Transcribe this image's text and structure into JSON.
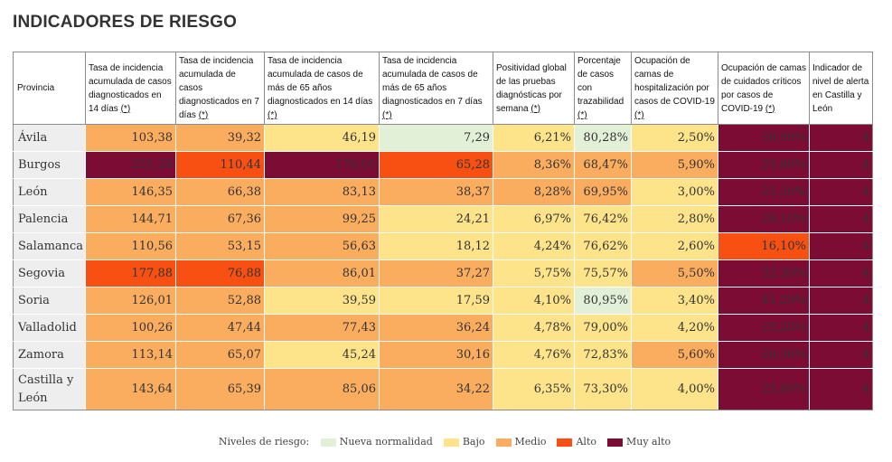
{
  "title": "INDICADORES DE RIESGO",
  "headers": [
    {
      "text": "Provincia",
      "star": ""
    },
    {
      "text": "Tasa de incidencia acumulada de casos diagnosticados en 14 días ",
      "star": "(*)"
    },
    {
      "text": "Tasa de incidencia acumulada de casos diagnosticados en 7 días ",
      "star": "(*)"
    },
    {
      "text": "Tasa de incidencia acumulada de casos de más de 65 años diagnosticados en 14 días ",
      "star": "(*)"
    },
    {
      "text": "Tasa de incidencia acumulada de casos de más de 65 años diagnosticados en 7 días ",
      "star": "(*)"
    },
    {
      "text": "Positividad global de las pruebas diagnósticas por semana ",
      "star": "(*)"
    },
    {
      "text": "Porcentaje de casos con trazabilidad ",
      "star": "(*)"
    },
    {
      "text": "Ocupación de camas de hospitalización por casos de COVID-19 ",
      "star": "(*)"
    },
    {
      "text": "Ocupación de camas de cuidados críticos por casos de COVID-19 ",
      "star": "(*)"
    },
    {
      "text": "Indicador de nivel de alerta en Castilla y León",
      "star": ""
    }
  ],
  "rows": [
    {
      "name": "Ávila",
      "cells": [
        {
          "v": "103,38",
          "lvl": "m"
        },
        {
          "v": "39,32",
          "lvl": "m"
        },
        {
          "v": "46,19",
          "lvl": "b"
        },
        {
          "v": "7,29",
          "lvl": "n"
        },
        {
          "v": "6,21%",
          "lvl": "b"
        },
        {
          "v": "80,28%",
          "lvl": "n"
        },
        {
          "v": "2,50%",
          "lvl": "b"
        },
        {
          "v": "38,90%",
          "lvl": "ma"
        },
        {
          "v": "4",
          "lvl": "ma"
        }
      ]
    },
    {
      "name": "Burgos",
      "cells": [
        {
          "v": "255,28",
          "lvl": "ma"
        },
        {
          "v": "110,44",
          "lvl": "a"
        },
        {
          "v": "176,01",
          "lvl": "ma"
        },
        {
          "v": "65,28",
          "lvl": "a"
        },
        {
          "v": "8,36%",
          "lvl": "m"
        },
        {
          "v": "68,47%",
          "lvl": "m"
        },
        {
          "v": "5,90%",
          "lvl": "m"
        },
        {
          "v": "25,80%",
          "lvl": "ma"
        },
        {
          "v": "4",
          "lvl": "ma"
        }
      ]
    },
    {
      "name": "León",
      "cells": [
        {
          "v": "146,35",
          "lvl": "m"
        },
        {
          "v": "66,38",
          "lvl": "m"
        },
        {
          "v": "83,13",
          "lvl": "m"
        },
        {
          "v": "38,37",
          "lvl": "m"
        },
        {
          "v": "8,28%",
          "lvl": "m"
        },
        {
          "v": "69,95%",
          "lvl": "m"
        },
        {
          "v": "3,00%",
          "lvl": "b"
        },
        {
          "v": "25,30%",
          "lvl": "ma"
        },
        {
          "v": "4",
          "lvl": "ma"
        }
      ]
    },
    {
      "name": "Palencia",
      "cells": [
        {
          "v": "144,71",
          "lvl": "m"
        },
        {
          "v": "67,36",
          "lvl": "m"
        },
        {
          "v": "99,25",
          "lvl": "m"
        },
        {
          "v": "24,21",
          "lvl": "b"
        },
        {
          "v": "6,97%",
          "lvl": "b"
        },
        {
          "v": "76,42%",
          "lvl": "b"
        },
        {
          "v": "2,80%",
          "lvl": "b"
        },
        {
          "v": "28,10%",
          "lvl": "ma"
        },
        {
          "v": "4",
          "lvl": "ma"
        }
      ]
    },
    {
      "name": "Salamanca",
      "cells": [
        {
          "v": "110,56",
          "lvl": "m"
        },
        {
          "v": "53,15",
          "lvl": "m"
        },
        {
          "v": "56,63",
          "lvl": "m"
        },
        {
          "v": "18,12",
          "lvl": "b"
        },
        {
          "v": "4,24%",
          "lvl": "b"
        },
        {
          "v": "76,62%",
          "lvl": "b"
        },
        {
          "v": "2,60%",
          "lvl": "b"
        },
        {
          "v": "16,10%",
          "lvl": "a"
        },
        {
          "v": "4",
          "lvl": "ma"
        }
      ]
    },
    {
      "name": "Segovia",
      "cells": [
        {
          "v": "177,88",
          "lvl": "a"
        },
        {
          "v": "76,88",
          "lvl": "a"
        },
        {
          "v": "86,01",
          "lvl": "m"
        },
        {
          "v": "37,27",
          "lvl": "m"
        },
        {
          "v": "5,75%",
          "lvl": "b"
        },
        {
          "v": "75,57%",
          "lvl": "b"
        },
        {
          "v": "5,50%",
          "lvl": "m"
        },
        {
          "v": "32,30%",
          "lvl": "ma"
        },
        {
          "v": "4",
          "lvl": "ma"
        }
      ]
    },
    {
      "name": "Soria",
      "cells": [
        {
          "v": "126,01",
          "lvl": "m"
        },
        {
          "v": "52,88",
          "lvl": "m"
        },
        {
          "v": "39,59",
          "lvl": "b"
        },
        {
          "v": "17,59",
          "lvl": "b"
        },
        {
          "v": "4,10%",
          "lvl": "b"
        },
        {
          "v": "80,95%",
          "lvl": "n"
        },
        {
          "v": "3,40%",
          "lvl": "b"
        },
        {
          "v": "41,20%",
          "lvl": "ma"
        },
        {
          "v": "4",
          "lvl": "ma"
        }
      ]
    },
    {
      "name": "Valladolid",
      "cells": [
        {
          "v": "100,26",
          "lvl": "m"
        },
        {
          "v": "47,44",
          "lvl": "m"
        },
        {
          "v": "77,43",
          "lvl": "m"
        },
        {
          "v": "36,24",
          "lvl": "m"
        },
        {
          "v": "4,78%",
          "lvl": "b"
        },
        {
          "v": "79,00%",
          "lvl": "b"
        },
        {
          "v": "4,20%",
          "lvl": "b"
        },
        {
          "v": "25,20%",
          "lvl": "ma"
        },
        {
          "v": "4",
          "lvl": "ma"
        }
      ]
    },
    {
      "name": "Zamora",
      "cells": [
        {
          "v": "113,14",
          "lvl": "m"
        },
        {
          "v": "65,07",
          "lvl": "m"
        },
        {
          "v": "45,24",
          "lvl": "b"
        },
        {
          "v": "30,16",
          "lvl": "m"
        },
        {
          "v": "4,76%",
          "lvl": "b"
        },
        {
          "v": "72,83%",
          "lvl": "b"
        },
        {
          "v": "5,60%",
          "lvl": "m"
        },
        {
          "v": "26,30%",
          "lvl": "ma"
        },
        {
          "v": "4",
          "lvl": "ma"
        }
      ]
    },
    {
      "name": "Castilla y León",
      "cells": [
        {
          "v": "143,64",
          "lvl": "m"
        },
        {
          "v": "65,39",
          "lvl": "m"
        },
        {
          "v": "85,06",
          "lvl": "m"
        },
        {
          "v": "34,22",
          "lvl": "m"
        },
        {
          "v": "6,35%",
          "lvl": "b"
        },
        {
          "v": "73,30%",
          "lvl": "b"
        },
        {
          "v": "4,00%",
          "lvl": "b"
        },
        {
          "v": "25,90%",
          "lvl": "ma"
        },
        {
          "v": "4",
          "lvl": "ma"
        }
      ]
    }
  ],
  "legend": {
    "label": "Niveles de riesgo:",
    "items": [
      {
        "key": "n",
        "label": "Nueva normalidad",
        "color": "#e2f0d8"
      },
      {
        "key": "b",
        "label": "Bajo",
        "color": "#fde38a"
      },
      {
        "key": "m",
        "label": "Medio",
        "color": "#fbad5f"
      },
      {
        "key": "a",
        "label": "Alto",
        "color": "#f84f13"
      },
      {
        "key": "ma",
        "label": "Muy alto",
        "color": "#7c0c33"
      }
    ]
  }
}
